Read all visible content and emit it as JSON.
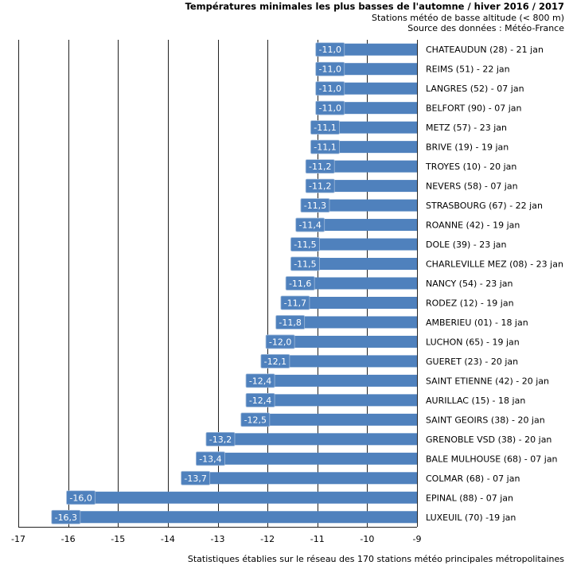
{
  "chart_data": {
    "type": "bar",
    "orientation": "horizontal",
    "title": "Températures minimales les plus basses de l'automne / hiver 2016 / 2017",
    "subtitle_lines": [
      "Stations météo de basse altitude (< 800 m)",
      "Source des données : Météo-France"
    ],
    "footer": "Statistiques établies sur le réseau des 170 stations météo principales métropolitaines",
    "xlim": [
      -17,
      -9
    ],
    "xticks": [
      -17,
      -16,
      -15,
      -14,
      -13,
      -12,
      -11,
      -10,
      -9
    ],
    "grid": true,
    "bar_color": "#4f81bd",
    "categories": [
      "CHATEAUDUN (28) - 21 jan",
      "REIMS (51) - 22 jan",
      "LANGRES (52) - 07 jan",
      "BELFORT (90) - 07 jan",
      "METZ (57) - 23 jan",
      "BRIVE (19) - 19 jan",
      "TROYES (10) - 20 jan",
      "NEVERS (58) - 07 jan",
      "STRASBOURG (67) - 22 jan",
      "ROANNE (42) - 19 jan",
      "DOLE (39) - 23 jan",
      "CHARLEVILLE MEZ (08) - 23 jan",
      "NANCY (54) - 23 jan",
      "RODEZ (12) - 19 jan",
      "AMBERIEU (01) - 18 jan",
      "LUCHON (65) - 19 jan",
      "GUERET (23) - 20 jan",
      "SAINT ETIENNE (42) - 20 jan",
      "AURILLAC (15) - 18 jan",
      "SAINT GEOIRS (38) - 20 jan",
      "GRENOBLE VSD (38) - 20 jan",
      "BALE MULHOUSE (68) - 07 jan",
      "COLMAR (68) - 07 jan",
      "EPINAL (88) - 07 jan",
      "LUXEUIL (70) -19 jan"
    ],
    "values": [
      -11.0,
      -11.0,
      -11.0,
      -11.0,
      -11.1,
      -11.1,
      -11.2,
      -11.2,
      -11.3,
      -11.4,
      -11.5,
      -11.5,
      -11.6,
      -11.7,
      -11.8,
      -12.0,
      -12.1,
      -12.4,
      -12.4,
      -12.5,
      -13.2,
      -13.4,
      -13.7,
      -16.0,
      -16.3
    ],
    "value_labels": [
      "-11,0",
      "-11,0",
      "-11,0",
      "-11,0",
      "-11,1",
      "-11,1",
      "-11,2",
      "-11,2",
      "-11,3",
      "-11,4",
      "-11,5",
      "-11,5",
      "-11,6",
      "-11,7",
      "-11,8",
      "-12,0",
      "-12,1",
      "-12,4",
      "-12,4",
      "-12,5",
      "-13,2",
      "-13,4",
      "-13,7",
      "-16,0",
      "-16,3"
    ]
  }
}
